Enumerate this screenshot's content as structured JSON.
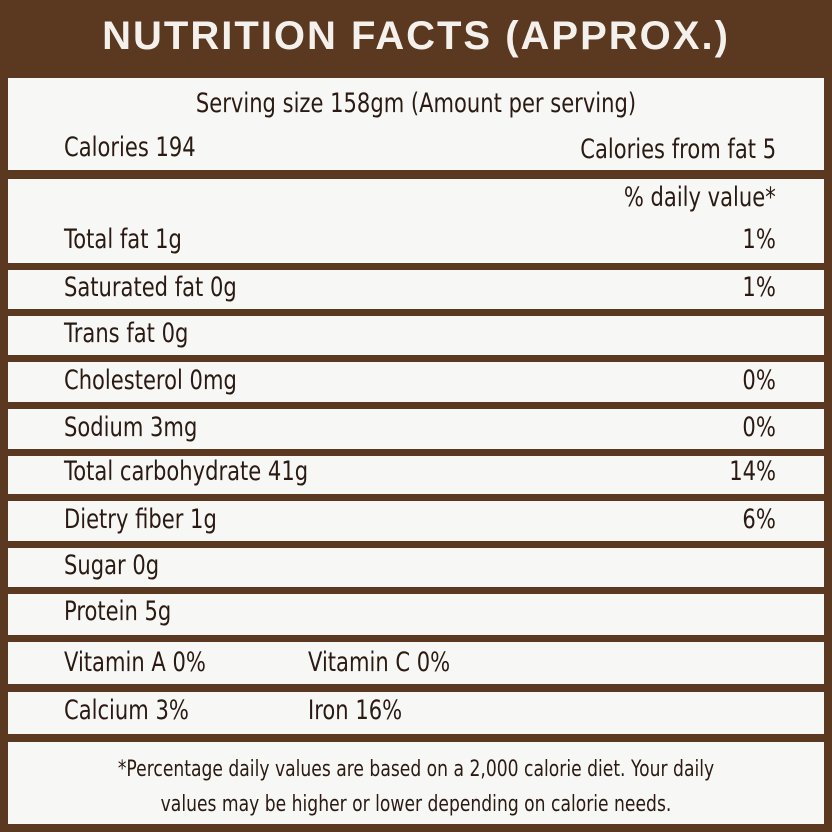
{
  "header": {
    "title": "NUTRITION FACTS (APPROX.)"
  },
  "serving": "Serving size 158gm (Amount per serving)",
  "calories": "Calories 194",
  "calories_from_fat": "Calories from fat 5",
  "daily_value_header": "% daily value*",
  "rows": [
    {
      "label": "Total fat 1g",
      "dv": "1%"
    },
    {
      "label": "Saturated fat 0g",
      "dv": "1%"
    },
    {
      "label": "Trans fat 0g"
    },
    {
      "label": "Cholesterol 0mg",
      "dv": "0%"
    },
    {
      "label": "Sodium 3mg",
      "dv": "0%"
    },
    {
      "label": "Total carbohydrate 41g",
      "dv": "14%"
    },
    {
      "label": "Dietry fiber 1g",
      "dv": "6%"
    },
    {
      "label": "Sugar 0g"
    },
    {
      "label": "Protein 5g"
    }
  ],
  "vitamins": [
    [
      "Vitamin A 0%",
      "Vitamin C 0%"
    ],
    [
      "Calcium 3%",
      "Iron 16%"
    ]
  ],
  "footnote": [
    "*Percentage daily values are based on a 2,000 calorie diet. Your daily",
    "values may be higher or lower depending on calorie needs."
  ]
}
